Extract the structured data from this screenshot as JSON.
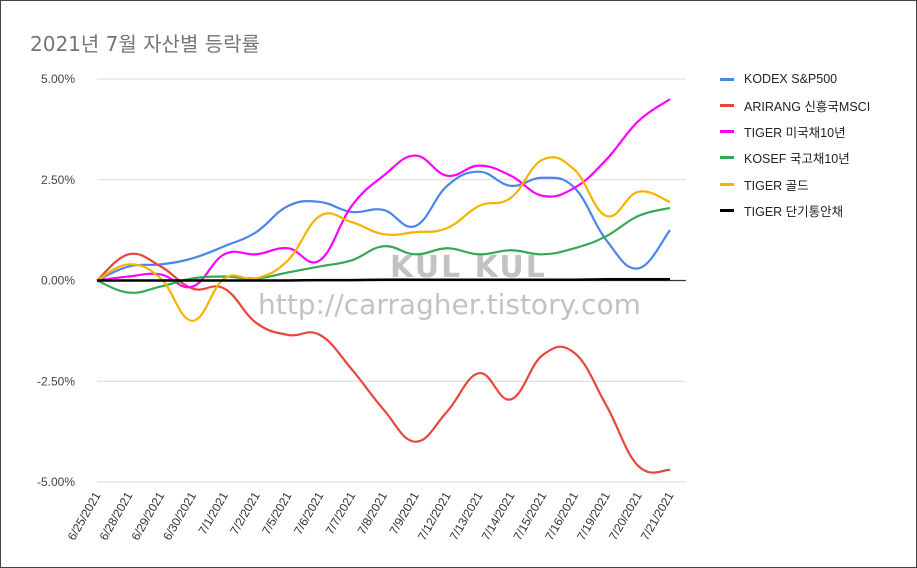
{
  "title": "2021년 7월 자산별 등락률",
  "watermark": {
    "line1": "KUL KUL",
    "line2": "http://carragher.tistory.com"
  },
  "chart_data": {
    "type": "line",
    "title": "2021년 7월 자산별 등락률",
    "xlabel": "",
    "ylabel": "",
    "ylim": [
      -5.0,
      5.0
    ],
    "yticks": [
      "5.00%",
      "2.50%",
      "0.00%",
      "-2.50%",
      "-5.00%"
    ],
    "ytick_values": [
      5.0,
      2.5,
      0.0,
      -2.5,
      -5.0
    ],
    "grid": "horizontal",
    "legend_position": "right",
    "categories": [
      "6/25/2021",
      "6/28/2021",
      "6/29/2021",
      "6/30/2021",
      "7/1/2021",
      "7/2/2021",
      "7/5/2021",
      "7/6/2021",
      "7/7/2021",
      "7/8/2021",
      "7/9/2021",
      "7/12/2021",
      "7/13/2021",
      "7/14/2021",
      "7/15/2021",
      "7/16/2021",
      "7/19/2021",
      "7/20/2021",
      "7/21/2021"
    ],
    "series": [
      {
        "name": "KODEX S&P500",
        "color": "#4a86e8",
        "values": [
          0.0,
          0.35,
          0.4,
          0.55,
          0.85,
          1.2,
          1.85,
          1.95,
          1.7,
          1.75,
          1.35,
          2.35,
          2.7,
          2.35,
          2.55,
          2.3,
          1.0,
          0.3,
          1.25
        ]
      },
      {
        "name": "ARIRANG 신흥국MSCI",
        "color": "#e8463a",
        "values": [
          0.0,
          0.65,
          0.35,
          -0.2,
          -0.2,
          -1.05,
          -1.35,
          -1.35,
          -2.2,
          -3.2,
          -4.0,
          -3.25,
          -2.3,
          -2.95,
          -1.85,
          -1.8,
          -3.1,
          -4.6,
          -4.7
        ]
      },
      {
        "name": "TIGER 미국채10년",
        "color": "#ff00ff",
        "values": [
          0.0,
          0.1,
          0.15,
          -0.15,
          0.65,
          0.65,
          0.8,
          0.5,
          1.85,
          2.6,
          3.1,
          2.6,
          2.85,
          2.6,
          2.1,
          2.3,
          3.0,
          3.95,
          4.5
        ]
      },
      {
        "name": "KOSEF 국고채10년",
        "color": "#34a853",
        "values": [
          0.0,
          -0.3,
          -0.15,
          0.05,
          0.1,
          0.05,
          0.2,
          0.35,
          0.5,
          0.85,
          0.65,
          0.8,
          0.65,
          0.75,
          0.65,
          0.8,
          1.1,
          1.6,
          1.8
        ]
      },
      {
        "name": "TIGER 골드",
        "color": "#f4b400",
        "values": [
          0.0,
          0.4,
          0.05,
          -1.0,
          0.05,
          0.05,
          0.5,
          1.6,
          1.45,
          1.15,
          1.2,
          1.3,
          1.85,
          2.05,
          3.0,
          2.75,
          1.6,
          2.2,
          1.95
        ]
      },
      {
        "name": "TIGER 단기통안채",
        "color": "#000000",
        "values": [
          0.0,
          0.0,
          0.0,
          0.0,
          0.0,
          0.0,
          0.0,
          0.01,
          0.01,
          0.02,
          0.02,
          0.02,
          0.02,
          0.02,
          0.02,
          0.02,
          0.03,
          0.03,
          0.03
        ]
      }
    ]
  }
}
